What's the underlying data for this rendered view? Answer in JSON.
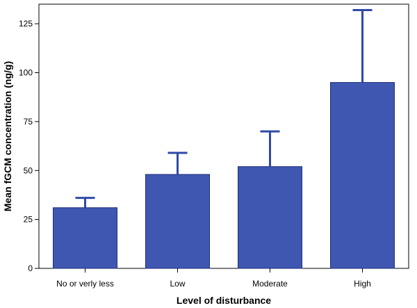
{
  "chart_data": {
    "type": "bar",
    "categories": [
      "No or verly less",
      "Low",
      "Moderate",
      "High"
    ],
    "values": [
      31,
      48,
      52,
      95
    ],
    "error_upper": [
      36,
      59,
      70,
      132
    ],
    "xlabel": "Level of disturbance",
    "ylabel": "Mean fGCM concentration (ng/g)",
    "ylim": [
      0,
      135
    ],
    "yticks": [
      0,
      25,
      50,
      75,
      100,
      125
    ],
    "grid": false,
    "bar_color": "#3f57b0",
    "error_color": "#2e4aa6"
  }
}
